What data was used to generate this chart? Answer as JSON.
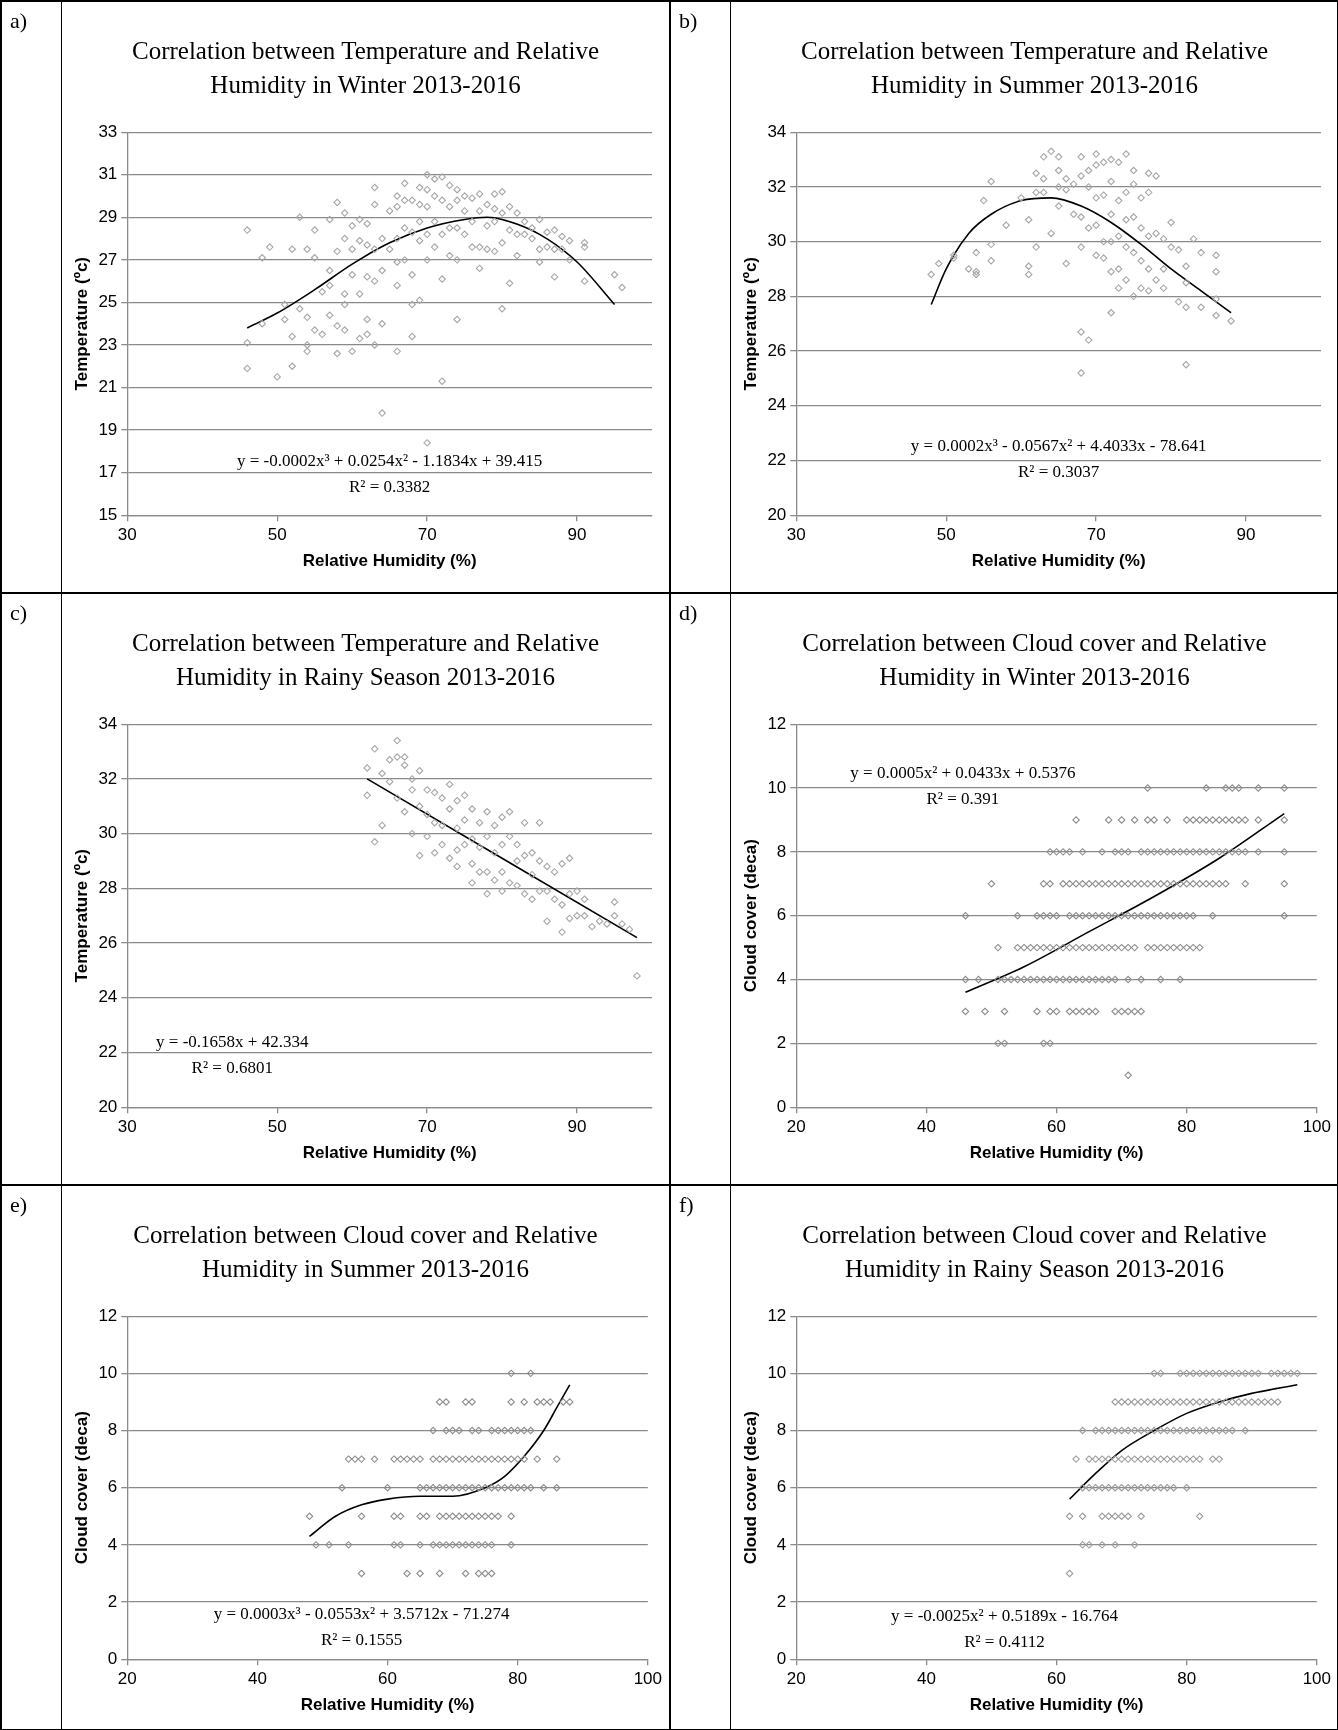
{
  "chart_data": [
    {
      "type": "scatter",
      "title": "Correlation between Temperature and Relative Humidity in Winter 2013-2016",
      "xlabel": "Relative Humidity (%)",
      "ylabel": "Temperature (ºc)",
      "xlim": [
        30,
        100
      ],
      "xticks": [
        30,
        50,
        70,
        90
      ],
      "ylim": [
        15,
        33
      ],
      "yticks": [
        15,
        17,
        19,
        21,
        23,
        25,
        27,
        29,
        31,
        33
      ],
      "grid": "y",
      "marker": "diamond",
      "annotations": [
        "a)",
        "y = -0.0002x³ + 0.0254x² - 1.1834x + 39.415",
        "R² = 0.3382"
      ],
      "series": [
        {
          "color": "#a6a6a6",
          "x": [
            46,
            46,
            46,
            48,
            48,
            49,
            50,
            51,
            51,
            52,
            52,
            52,
            53,
            53,
            54,
            54,
            54,
            54,
            55,
            55,
            55,
            56,
            56,
            57,
            57,
            57,
            57,
            58,
            58,
            58,
            58,
            59,
            59,
            59,
            59,
            59,
            60,
            60,
            60,
            60,
            61,
            61,
            61,
            61,
            62,
            62,
            62,
            62,
            62,
            63,
            63,
            63,
            63,
            63,
            64,
            64,
            64,
            64,
            65,
            65,
            66,
            66,
            66,
            66,
            66,
            66,
            67,
            67,
            67,
            67,
            68,
            68,
            68,
            68,
            68,
            69,
            69,
            69,
            69,
            69,
            70,
            70,
            70,
            70,
            70,
            70,
            71,
            71,
            71,
            71,
            72,
            72,
            72,
            72,
            72,
            73,
            73,
            73,
            73,
            74,
            74,
            74,
            74,
            74,
            75,
            75,
            75,
            76,
            76,
            76,
            77,
            77,
            77,
            77,
            78,
            78,
            78,
            79,
            79,
            79,
            79,
            80,
            80,
            80,
            80,
            81,
            81,
            81,
            82,
            82,
            82,
            83,
            83,
            84,
            84,
            85,
            85,
            85,
            86,
            86,
            87,
            87,
            87,
            88,
            88,
            89,
            89,
            91,
            91,
            91,
            95,
            96
          ],
          "values": [
            28.4,
            23.1,
            21.9,
            27.1,
            24.0,
            27.6,
            21.5,
            24.9,
            24.2,
            27.5,
            23.4,
            22.0,
            29.0,
            24.7,
            27.5,
            24.3,
            22.7,
            23.0,
            28.4,
            27.1,
            23.7,
            25.5,
            23.5,
            28.9,
            26.5,
            25.8,
            24.4,
            29.7,
            27.4,
            23.9,
            22.6,
            29.2,
            28.0,
            25.4,
            24.9,
            23.7,
            28.6,
            27.5,
            26.3,
            22.7,
            28.9,
            27.9,
            25.4,
            23.3,
            28.7,
            27.7,
            26.2,
            24.2,
            23.5,
            30.4,
            29.6,
            27.5,
            26.0,
            23.0,
            28.0,
            26.5,
            24.0,
            19.8,
            29.3,
            27.5,
            30.0,
            29.5,
            28.0,
            26.9,
            25.8,
            22.7,
            30.6,
            29.8,
            28.5,
            27.0,
            29.8,
            28.3,
            26.3,
            24.9,
            23.4,
            30.4,
            29.6,
            28.8,
            27.9,
            25.1,
            31.0,
            30.3,
            29.5,
            28.2,
            27.0,
            18.4,
            30.8,
            30.0,
            28.8,
            27.6,
            30.9,
            29.8,
            28.2,
            26.1,
            21.3,
            30.5,
            29.5,
            28.5,
            27.2,
            30.3,
            29.8,
            28.5,
            27.0,
            24.2,
            30.0,
            29.3,
            28.2,
            29.9,
            28.8,
            27.6,
            30.1,
            29.3,
            27.6,
            26.6,
            29.6,
            28.6,
            27.5,
            30.1,
            29.4,
            28.8,
            27.4,
            30.2,
            29.2,
            27.8,
            24.7,
            29.5,
            28.4,
            25.9,
            29.2,
            28.2,
            27.2,
            28.8,
            28.2,
            28.5,
            28.0,
            28.9,
            27.5,
            26.9,
            28.3,
            27.6,
            28.4,
            27.5,
            26.2,
            28.1,
            27.5,
            27.9,
            27.0,
            27.8,
            27.6,
            26.0,
            26.3,
            25.7
          ]
        },
        {
          "type": "line",
          "color": "#000000",
          "marker": "none",
          "x": [
            46,
            50,
            55,
            60,
            65,
            70,
            75,
            78,
            80,
            85,
            90,
            95
          ],
          "values": [
            23.8,
            24.5,
            25.6,
            26.8,
            27.8,
            28.5,
            28.9,
            29.0,
            28.9,
            28.2,
            26.9,
            24.9
          ]
        }
      ]
    },
    {
      "type": "scatter",
      "title": "Correlation between Temperature and Relative Humidity in Summer 2013-2016",
      "xlabel": "Relative Humidity (%)",
      "ylabel": "Temperature (ºc)",
      "xlim": [
        30,
        100
      ],
      "xticks": [
        30,
        50,
        70,
        90
      ],
      "ylim": [
        20,
        34
      ],
      "yticks": [
        20,
        22,
        24,
        26,
        28,
        30,
        32,
        34
      ],
      "grid": "y",
      "marker": "diamond",
      "annotations": [
        "b)",
        "y = 0.0002x³ - 0.0567x² + 4.4033x - 78.641",
        "R² = 0.3037"
      ],
      "series": [
        {
          "color": "#a6a6a6",
          "x": [
            48,
            49,
            51,
            51,
            53,
            54,
            54,
            54,
            55,
            56,
            56,
            56,
            58,
            60,
            61,
            61,
            61,
            62,
            62,
            62,
            63,
            63,
            63,
            64,
            64,
            65,
            65,
            65,
            65,
            66,
            66,
            66,
            67,
            67,
            68,
            68,
            68,
            68,
            68,
            68,
            69,
            69,
            69,
            69,
            70,
            70,
            70,
            70,
            70,
            71,
            71,
            71,
            71,
            72,
            72,
            72,
            72,
            72,
            72,
            73,
            73,
            73,
            73,
            73,
            74,
            74,
            74,
            74,
            74,
            75,
            75,
            75,
            75,
            75,
            76,
            76,
            76,
            76,
            77,
            77,
            77,
            77,
            77,
            78,
            78,
            78,
            79,
            79,
            79,
            80,
            80,
            81,
            81,
            82,
            82,
            82,
            82,
            83,
            84,
            84,
            86,
            86,
            86,
            86,
            88
          ],
          "values": [
            28.8,
            29.2,
            29.5,
            29.4,
            29.0,
            29.6,
            28.9,
            28.8,
            31.5,
            32.2,
            29.9,
            29.3,
            30.6,
            31.6,
            30.8,
            29.1,
            28.8,
            32.5,
            31.8,
            29.8,
            33.1,
            32.3,
            31.8,
            33.3,
            30.3,
            33.1,
            32.6,
            32.0,
            31.3,
            32.3,
            31.9,
            29.2,
            32.1,
            31.0,
            33.1,
            32.4,
            30.9,
            29.8,
            26.7,
            25.2,
            32.6,
            32.0,
            30.5,
            26.4,
            33.2,
            32.8,
            31.6,
            30.6,
            29.5,
            32.9,
            31.7,
            30.0,
            29.4,
            33.0,
            32.2,
            31.0,
            30.0,
            28.9,
            27.4,
            32.9,
            31.5,
            30.2,
            29.0,
            28.3,
            33.2,
            31.8,
            30.8,
            29.8,
            28.6,
            32.6,
            32.1,
            30.9,
            29.6,
            28.0,
            31.6,
            30.5,
            29.3,
            28.3,
            32.5,
            31.8,
            30.2,
            29.0,
            28.2,
            32.4,
            30.3,
            28.6,
            29.0,
            28.3,
            30.1,
            29.8,
            30.7,
            29.7,
            27.8,
            29.1,
            28.5,
            27.6,
            25.5,
            30.1,
            29.6,
            27.6,
            29.5,
            28.9,
            27.9,
            27.3,
            27.1
          ]
        },
        {
          "type": "line",
          "color": "#000000",
          "marker": "none",
          "x": [
            48,
            50,
            53,
            56,
            60,
            64,
            68,
            72,
            76,
            80,
            84,
            88
          ],
          "values": [
            27.7,
            29.0,
            30.3,
            31.0,
            31.5,
            31.6,
            31.3,
            30.7,
            29.9,
            29.0,
            28.2,
            27.4
          ]
        }
      ]
    },
    {
      "type": "scatter",
      "title": "Correlation between Temperature and Relative Humidity in Rainy Season 2013-2016",
      "xlabel": "Relative Humidity (%)",
      "ylabel": "Temperature (ºc)",
      "xlim": [
        30,
        100
      ],
      "xticks": [
        30,
        50,
        70,
        90
      ],
      "ylim": [
        20,
        34
      ],
      "yticks": [
        20,
        22,
        24,
        26,
        28,
        30,
        32,
        34
      ],
      "grid": "y",
      "marker": "diamond",
      "annotations": [
        "c)",
        "y = -0.1658x + 42.334",
        "R² = 0.6801"
      ],
      "series": [
        {
          "color": "#a6a6a6",
          "x": [
            62,
            62,
            63,
            63,
            64,
            64,
            65,
            65,
            66,
            66,
            66,
            67,
            67,
            67,
            68,
            68,
            68,
            69,
            69,
            69,
            70,
            70,
            70,
            71,
            71,
            71,
            72,
            72,
            72,
            73,
            73,
            73,
            74,
            74,
            74,
            74,
            75,
            75,
            75,
            76,
            76,
            76,
            76,
            77,
            77,
            77,
            78,
            78,
            78,
            78,
            79,
            79,
            79,
            80,
            80,
            80,
            80,
            81,
            81,
            81,
            82,
            82,
            82,
            83,
            83,
            83,
            84,
            84,
            84,
            85,
            85,
            85,
            86,
            86,
            86,
            87,
            87,
            88,
            88,
            88,
            89,
            89,
            89,
            90,
            90,
            91,
            91,
            92,
            93,
            94,
            95,
            95,
            96,
            97,
            98
          ],
          "values": [
            32.4,
            31.4,
            33.1,
            29.7,
            32.2,
            30.3,
            32.7,
            31.9,
            33.4,
            32.8,
            31.3,
            32.8,
            32.5,
            30.8,
            32.0,
            31.6,
            30.0,
            32.3,
            31.0,
            29.2,
            31.6,
            30.7,
            29.9,
            31.5,
            30.4,
            29.3,
            31.3,
            30.3,
            29.6,
            31.8,
            30.9,
            29.1,
            31.2,
            30.2,
            29.4,
            28.8,
            31.4,
            30.5,
            29.6,
            30.9,
            29.8,
            28.9,
            28.2,
            30.4,
            29.5,
            28.6,
            30.8,
            29.9,
            28.6,
            27.8,
            30.3,
            29.3,
            28.3,
            30.6,
            29.6,
            28.6,
            27.9,
            30.8,
            29.9,
            28.2,
            29.6,
            29.0,
            28.1,
            30.4,
            29.2,
            27.8,
            29.3,
            28.5,
            27.6,
            30.4,
            29.0,
            27.9,
            28.8,
            27.9,
            26.8,
            28.6,
            27.6,
            28.9,
            27.4,
            26.4,
            29.1,
            27.8,
            26.9,
            27.9,
            27.0,
            27.6,
            27.0,
            26.6,
            26.8,
            26.7,
            27.5,
            27.0,
            26.7,
            26.5,
            24.8
          ]
        },
        {
          "type": "line",
          "color": "#000000",
          "marker": "none",
          "x": [
            62,
            98
          ],
          "values": [
            32.0,
            26.2
          ]
        }
      ]
    },
    {
      "type": "scatter",
      "title": "Correlation between Cloud cover and Relative Humidity in Winter 2013-2016",
      "xlabel": "Relative Humidity (%)",
      "ylabel": "Cloud cover (deca)",
      "xlim": [
        20,
        100
      ],
      "xticks": [
        20,
        40,
        60,
        80,
        100
      ],
      "ylim": [
        0,
        12
      ],
      "yticks": [
        0,
        2,
        4,
        6,
        8,
        10,
        12
      ],
      "grid": "y",
      "marker": "diamond",
      "annotations": [
        "d)",
        "y = 0.0005x² + 0.0433x + 0.5376",
        "R² = 0.391"
      ],
      "series": [
        {
          "color": "#8c8c8c",
          "x": [
            74,
            83,
            86,
            87,
            88,
            91,
            95,
            63,
            68,
            70,
            72,
            74,
            75,
            77,
            80,
            81,
            82,
            83,
            84,
            85,
            86,
            87,
            88,
            89,
            91,
            95,
            59,
            60,
            61,
            62,
            64,
            67,
            69,
            70,
            71,
            73,
            74,
            75,
            76,
            77,
            78,
            79,
            80,
            81,
            82,
            83,
            84,
            85,
            86,
            87,
            88,
            89,
            91,
            95,
            50,
            58,
            59,
            61,
            62,
            63,
            64,
            65,
            66,
            67,
            68,
            69,
            70,
            71,
            72,
            73,
            74,
            75,
            76,
            77,
            78,
            79,
            80,
            81,
            82,
            83,
            84,
            85,
            86,
            89,
            95,
            46,
            54,
            57,
            58,
            59,
            60,
            62,
            63,
            64,
            65,
            66,
            67,
            68,
            69,
            70,
            71,
            72,
            73,
            74,
            75,
            76,
            77,
            78,
            79,
            80,
            81,
            84,
            95,
            51,
            54,
            55,
            56,
            57,
            58,
            59,
            60,
            61,
            62,
            63,
            64,
            65,
            66,
            67,
            68,
            69,
            70,
            71,
            72,
            74,
            75,
            76,
            77,
            78,
            79,
            80,
            81,
            82,
            46,
            48,
            51,
            52,
            53,
            54,
            55,
            56,
            57,
            58,
            59,
            60,
            61,
            62,
            63,
            64,
            65,
            66,
            67,
            68,
            69,
            71,
            73,
            76,
            79,
            46,
            49,
            52,
            57,
            59,
            60,
            62,
            63,
            64,
            65,
            66,
            69,
            70,
            71,
            72,
            73,
            51,
            52,
            58,
            59,
            71
          ],
          "values": [
            10,
            10,
            10,
            10,
            10,
            10,
            10,
            9,
            9,
            9,
            9,
            9,
            9,
            9,
            9,
            9,
            9,
            9,
            9,
            9,
            9,
            9,
            9,
            9,
            9,
            9,
            8,
            8,
            8,
            8,
            8,
            8,
            8,
            8,
            8,
            8,
            8,
            8,
            8,
            8,
            8,
            8,
            8,
            8,
            8,
            8,
            8,
            8,
            8,
            8,
            8,
            8,
            8,
            8,
            7,
            7,
            7,
            7,
            7,
            7,
            7,
            7,
            7,
            7,
            7,
            7,
            7,
            7,
            7,
            7,
            7,
            7,
            7,
            7,
            7,
            7,
            7,
            7,
            7,
            7,
            7,
            7,
            7,
            7,
            7,
            6,
            6,
            6,
            6,
            6,
            6,
            6,
            6,
            6,
            6,
            6,
            6,
            6,
            6,
            6,
            6,
            6,
            6,
            6,
            6,
            6,
            6,
            6,
            6,
            6,
            6,
            6,
            6,
            5,
            5,
            5,
            5,
            5,
            5,
            5,
            5,
            5,
            5,
            5,
            5,
            5,
            5,
            5,
            5,
            5,
            5,
            5,
            5,
            5,
            5,
            5,
            5,
            5,
            5,
            5,
            5,
            5,
            4,
            4,
            4,
            4,
            4,
            4,
            4,
            4,
            4,
            4,
            4,
            4,
            4,
            4,
            4,
            4,
            4,
            4,
            4,
            4,
            4,
            4,
            4,
            4,
            4,
            3,
            3,
            3,
            3,
            3,
            3,
            3,
            3,
            3,
            3,
            3,
            3,
            3,
            3,
            3,
            3,
            2,
            2,
            2,
            2,
            1
          ]
        },
        {
          "type": "line",
          "color": "#000000",
          "marker": "none",
          "x": [
            46,
            55,
            65,
            75,
            85,
            95
          ],
          "values": [
            3.6,
            4.4,
            5.5,
            6.6,
            7.8,
            9.2
          ]
        }
      ]
    },
    {
      "type": "scatter",
      "title": "Correlation between Cloud cover and Relative Humidity in Summer 2013-2016",
      "xlabel": "Relative Humidity (%)",
      "ylabel": "Cloud cover (deca)",
      "xlim": [
        20,
        100
      ],
      "xticks": [
        20,
        40,
        60,
        80,
        100
      ],
      "ylim": [
        0,
        12
      ],
      "yticks": [
        0,
        2,
        4,
        6,
        8,
        10,
        12
      ],
      "grid": "y",
      "marker": "diamond",
      "annotations": [
        "e)",
        "y = 0.0003x³ - 0.0553x² + 3.5712x - 71.274",
        "R² = 0.1555"
      ],
      "series": [
        {
          "color": "#8c8c8c",
          "x": [
            79,
            82,
            68,
            69,
            72,
            73,
            79,
            81,
            83,
            84,
            85,
            87,
            88,
            67,
            69,
            70,
            71,
            73,
            74,
            76,
            77,
            78,
            79,
            80,
            81,
            82,
            54,
            55,
            56,
            58,
            61,
            62,
            63,
            64,
            65,
            67,
            68,
            69,
            70,
            71,
            72,
            73,
            74,
            75,
            76,
            77,
            78,
            79,
            80,
            81,
            83,
            86,
            53,
            60,
            65,
            66,
            67,
            68,
            69,
            70,
            71,
            72,
            73,
            74,
            75,
            76,
            77,
            78,
            79,
            80,
            81,
            82,
            84,
            86,
            48,
            56,
            61,
            62,
            65,
            66,
            68,
            69,
            70,
            71,
            72,
            73,
            74,
            75,
            76,
            77,
            79,
            49,
            51,
            54,
            61,
            62,
            65,
            67,
            68,
            69,
            70,
            71,
            72,
            73,
            74,
            75,
            76,
            79,
            56,
            63,
            65,
            68,
            72,
            74,
            75,
            76
          ],
          "values": [
            10,
            10,
            9,
            9,
            9,
            9,
            9,
            9,
            9,
            9,
            9,
            9,
            9,
            8,
            8,
            8,
            8,
            8,
            8,
            8,
            8,
            8,
            8,
            8,
            8,
            8,
            7,
            7,
            7,
            7,
            7,
            7,
            7,
            7,
            7,
            7,
            7,
            7,
            7,
            7,
            7,
            7,
            7,
            7,
            7,
            7,
            7,
            7,
            7,
            7,
            7,
            7,
            6,
            6,
            6,
            6,
            6,
            6,
            6,
            6,
            6,
            6,
            6,
            6,
            6,
            6,
            6,
            6,
            6,
            6,
            6,
            6,
            6,
            6,
            5,
            5,
            5,
            5,
            5,
            5,
            5,
            5,
            5,
            5,
            5,
            5,
            5,
            5,
            5,
            5,
            5,
            4,
            4,
            4,
            4,
            4,
            4,
            4,
            4,
            4,
            4,
            4,
            4,
            4,
            4,
            4,
            4,
            4,
            3,
            3,
            3,
            3,
            3,
            3,
            3,
            3
          ]
        },
        {
          "type": "line",
          "color": "#000000",
          "marker": "none",
          "x": [
            48,
            52,
            56,
            60,
            65,
            70,
            75,
            78,
            81,
            84,
            86,
            88
          ],
          "values": [
            4.3,
            5.0,
            5.4,
            5.6,
            5.7,
            5.7,
            6.0,
            6.4,
            7.1,
            8.0,
            8.8,
            9.6
          ]
        }
      ]
    },
    {
      "type": "scatter",
      "title": "Correlation between Cloud cover and Relative Humidity in Rainy Season 2013-2016",
      "xlabel": "Relative Humidity (%)",
      "ylabel": "Cloud cover (deca)",
      "xlim": [
        20,
        100
      ],
      "xticks": [
        20,
        40,
        60,
        80,
        100
      ],
      "ylim": [
        0,
        12
      ],
      "yticks": [
        0,
        2,
        4,
        6,
        8,
        10,
        12
      ],
      "grid": "y",
      "marker": "diamond",
      "annotations": [
        "f)",
        "y = -0.0025x² + 0.5189x - 16.764",
        "R² = 0.4112"
      ],
      "series": [
        {
          "color": "#9a9a9a",
          "x": [
            75,
            76,
            79,
            80,
            81,
            82,
            83,
            84,
            85,
            86,
            87,
            88,
            89,
            90,
            91,
            93,
            94,
            95,
            96,
            97,
            69,
            70,
            71,
            72,
            73,
            74,
            75,
            76,
            77,
            78,
            79,
            80,
            81,
            82,
            83,
            84,
            85,
            86,
            87,
            88,
            89,
            90,
            91,
            92,
            93,
            94,
            64,
            66,
            67,
            68,
            69,
            70,
            71,
            72,
            73,
            74,
            75,
            76,
            77,
            78,
            79,
            80,
            81,
            82,
            83,
            84,
            85,
            86,
            87,
            89,
            63,
            65,
            66,
            67,
            68,
            69,
            70,
            71,
            72,
            73,
            74,
            75,
            76,
            77,
            78,
            79,
            80,
            81,
            82,
            84,
            85,
            64,
            65,
            66,
            67,
            68,
            69,
            70,
            71,
            72,
            73,
            74,
            75,
            76,
            77,
            78,
            80,
            62,
            64,
            67,
            68,
            69,
            70,
            71,
            73,
            82,
            64,
            65,
            67,
            69,
            72,
            62
          ],
          "values": [
            10,
            10,
            10,
            10,
            10,
            10,
            10,
            10,
            10,
            10,
            10,
            10,
            10,
            10,
            10,
            10,
            10,
            10,
            10,
            10,
            9,
            9,
            9,
            9,
            9,
            9,
            9,
            9,
            9,
            9,
            9,
            9,
            9,
            9,
            9,
            9,
            9,
            9,
            9,
            9,
            9,
            9,
            9,
            9,
            9,
            9,
            8,
            8,
            8,
            8,
            8,
            8,
            8,
            8,
            8,
            8,
            8,
            8,
            8,
            8,
            8,
            8,
            8,
            8,
            8,
            8,
            8,
            8,
            8,
            8,
            7,
            7,
            7,
            7,
            7,
            7,
            7,
            7,
            7,
            7,
            7,
            7,
            7,
            7,
            7,
            7,
            7,
            7,
            7,
            7,
            7,
            6,
            6,
            6,
            6,
            6,
            6,
            6,
            6,
            6,
            6,
            6,
            6,
            6,
            6,
            6,
            6,
            5,
            5,
            5,
            5,
            5,
            5,
            5,
            5,
            5,
            4,
            4,
            4,
            4,
            4,
            3
          ]
        },
        {
          "type": "line",
          "color": "#000000",
          "marker": "none",
          "x": [
            62,
            66,
            70,
            75,
            80,
            85,
            90,
            97
          ],
          "values": [
            5.6,
            6.5,
            7.3,
            8.0,
            8.6,
            9.0,
            9.3,
            9.6
          ]
        }
      ]
    }
  ]
}
